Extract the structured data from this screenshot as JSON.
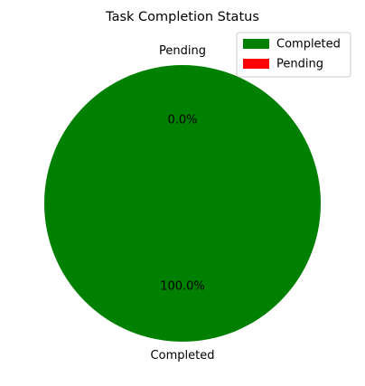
{
  "chart_data": {
    "type": "pie",
    "title": "Task Completion Status",
    "slices": [
      {
        "label": "Completed",
        "value": 100.0,
        "percent_label": "100.0%",
        "color": "#008000"
      },
      {
        "label": "Pending",
        "value": 0.0,
        "percent_label": "0.0%",
        "color": "#ff0000"
      }
    ],
    "legend": {
      "placement": "top-right",
      "entries": [
        "Completed",
        "Pending"
      ]
    }
  }
}
